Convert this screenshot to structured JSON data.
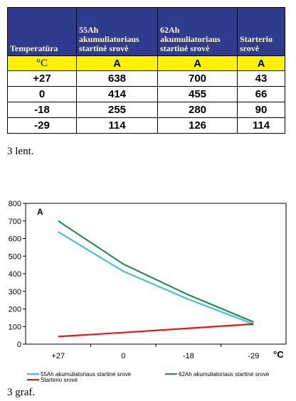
{
  "table": {
    "headers": [
      "Temperatūra",
      "55Ah akumuliatoriaus startinė srovė",
      "62Ah akumuliatoriaus startinė srovė",
      "Starterio srovė"
    ],
    "units": [
      "°C",
      "A",
      "A",
      "A"
    ],
    "rows": [
      [
        "+27",
        "638",
        "700",
        "43"
      ],
      [
        "0",
        "414",
        "455",
        "66"
      ],
      [
        "-18",
        "255",
        "280",
        "90"
      ],
      [
        "-29",
        "114",
        "126",
        "114"
      ]
    ],
    "caption": "3 lent."
  },
  "chart_data": {
    "type": "line",
    "categories": [
      "+27",
      "0",
      "-18",
      "-29"
    ],
    "series": [
      {
        "name": "55Ah akumuliatoriaus startinė srovė",
        "values": [
          638,
          414,
          255,
          114
        ],
        "color": "#40c8c0"
      },
      {
        "name": "62Ah akumuliatoriaus startinė srovė",
        "values": [
          700,
          455,
          280,
          126
        ],
        "color": "#2e8b57"
      },
      {
        "name": "Starterio srovė",
        "values": [
          43,
          66,
          90,
          114
        ],
        "color": "#e8161b"
      }
    ],
    "ylabel": "A",
    "xlabel": "°C",
    "ylim": [
      0,
      800
    ],
    "yticks": [
      0,
      100,
      200,
      300,
      400,
      500,
      600,
      700,
      800
    ],
    "grid": false,
    "legend_position": "bottom",
    "caption": "3 graf."
  }
}
